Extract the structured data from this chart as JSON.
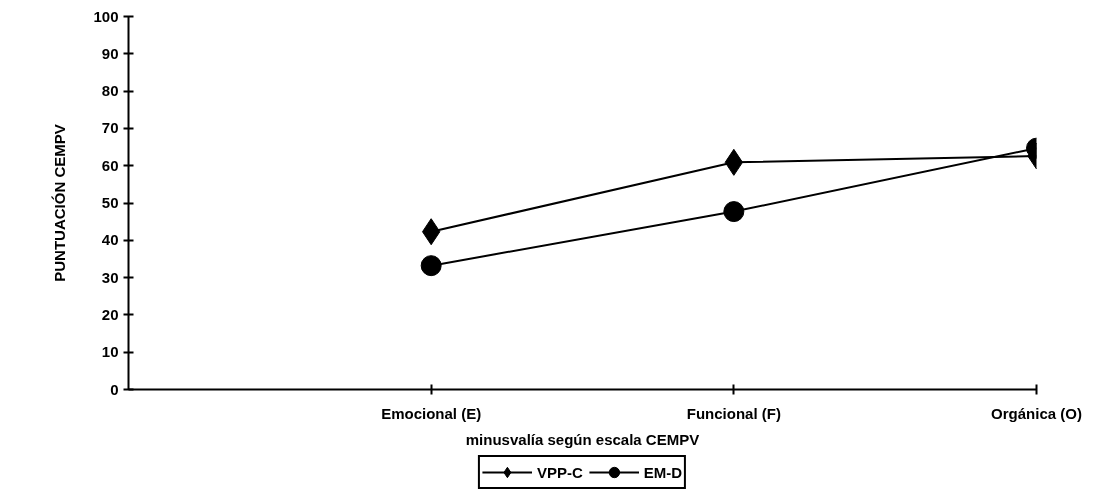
{
  "chart_data": {
    "type": "line",
    "xlabel": "minusvalía según escala CEMPV",
    "ylabel": "PUNTUACIÓN CEMPV",
    "categories": [
      null,
      "Emocional (E)",
      "Funcional (F)",
      "Orgánica (O)"
    ],
    "series": [
      {
        "name": "VPP-C",
        "color": "#000000",
        "marker": "diamond",
        "values": [
          null,
          42.3,
          60.9,
          62.6
        ]
      },
      {
        "name": "EM-D",
        "color": "#000000",
        "marker": "circle",
        "values": [
          null,
          33.2,
          47.7,
          64.7
        ]
      }
    ],
    "ylim": [
      0,
      100
    ],
    "yticks": [
      0,
      10,
      20,
      30,
      40,
      50,
      60,
      70,
      80,
      90,
      100
    ],
    "grid": false,
    "legend": "bottom",
    "line_style": "solid"
  }
}
